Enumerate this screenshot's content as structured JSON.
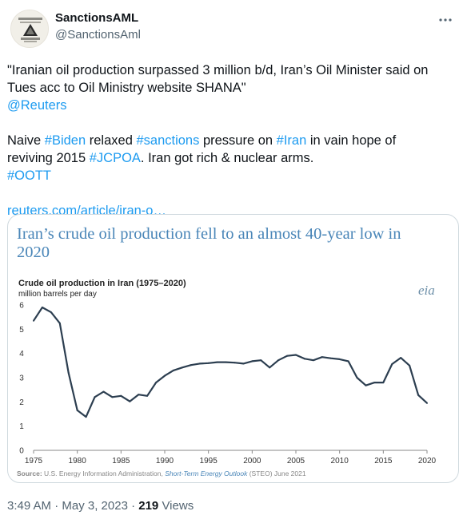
{
  "author": {
    "name": "SanctionsAML",
    "handle": "@SanctionsAml"
  },
  "tweet": {
    "line1": "\"Iranian oil production surpassed 3 million b/d, Iran’s Oil Minister said on",
    "line2": "Tues acc to Oil Ministry website SHANA\"",
    "mention": "@Reuters",
    "p2_a": "Naive ",
    "tag_biden": "#Biden",
    "p2_b": " relaxed ",
    "tag_sanctions": "#sanctions",
    "p2_c": " pressure on ",
    "tag_iran": "#Iran",
    "p2_d": " in vain hope of",
    "p3_a": "reviving 2015 ",
    "tag_jcpoa": "#JCPOA",
    "p3_b": ". Iran got rich & nuclear arms.",
    "tag_oott": "#OOTT",
    "link": "reuters.com/article/iran-o…"
  },
  "meta": {
    "time": "3:49 AM · May 3, 2023 · ",
    "views_count": "219",
    "views_label": " Views"
  },
  "colors": {
    "link": "#1d9bf0",
    "headline": "#4a86b8",
    "line": "#2c3e50"
  },
  "chart_data": {
    "type": "line",
    "headline_line1": "Iran’s crude oil production fell to an almost 40-year low in",
    "headline_line2": "2020",
    "title": "Crude oil production in Iran (1975–2020)",
    "ylabel": "million barrels per day",
    "logo_text": "eia",
    "source_label": "Source:",
    "source_text": " U.S. Energy Information Administration, ",
    "source_link": "Short-Term Energy Outlook",
    "source_tail": " (STEO) June 2021",
    "xlim": [
      1975,
      2020
    ],
    "ylim": [
      0,
      6
    ],
    "xticks": [
      "1975",
      "1980",
      "1985",
      "1990",
      "1995",
      "2000",
      "2005",
      "2010",
      "2015",
      "2020"
    ],
    "yticks": [
      "0",
      "1",
      "2",
      "3",
      "4",
      "5",
      "6"
    ],
    "grid": false,
    "x": [
      1975,
      1976,
      1977,
      1978,
      1979,
      1980,
      1981,
      1982,
      1983,
      1984,
      1985,
      1986,
      1987,
      1988,
      1989,
      1990,
      1991,
      1992,
      1993,
      1994,
      1995,
      1996,
      1997,
      1998,
      1999,
      2000,
      2001,
      2002,
      2003,
      2004,
      2005,
      2006,
      2007,
      2008,
      2009,
      2010,
      2011,
      2012,
      2013,
      2014,
      2015,
      2016,
      2017,
      2018,
      2019,
      2020
    ],
    "y": [
      5.35,
      5.9,
      5.7,
      5.25,
      3.2,
      1.65,
      1.38,
      2.2,
      2.42,
      2.2,
      2.25,
      2.02,
      2.3,
      2.25,
      2.8,
      3.08,
      3.3,
      3.42,
      3.52,
      3.58,
      3.6,
      3.64,
      3.64,
      3.62,
      3.58,
      3.68,
      3.72,
      3.42,
      3.72,
      3.9,
      3.94,
      3.78,
      3.72,
      3.85,
      3.8,
      3.76,
      3.68,
      3.0,
      2.68,
      2.8,
      2.8,
      3.56,
      3.82,
      3.5,
      2.28,
      1.95
    ]
  }
}
